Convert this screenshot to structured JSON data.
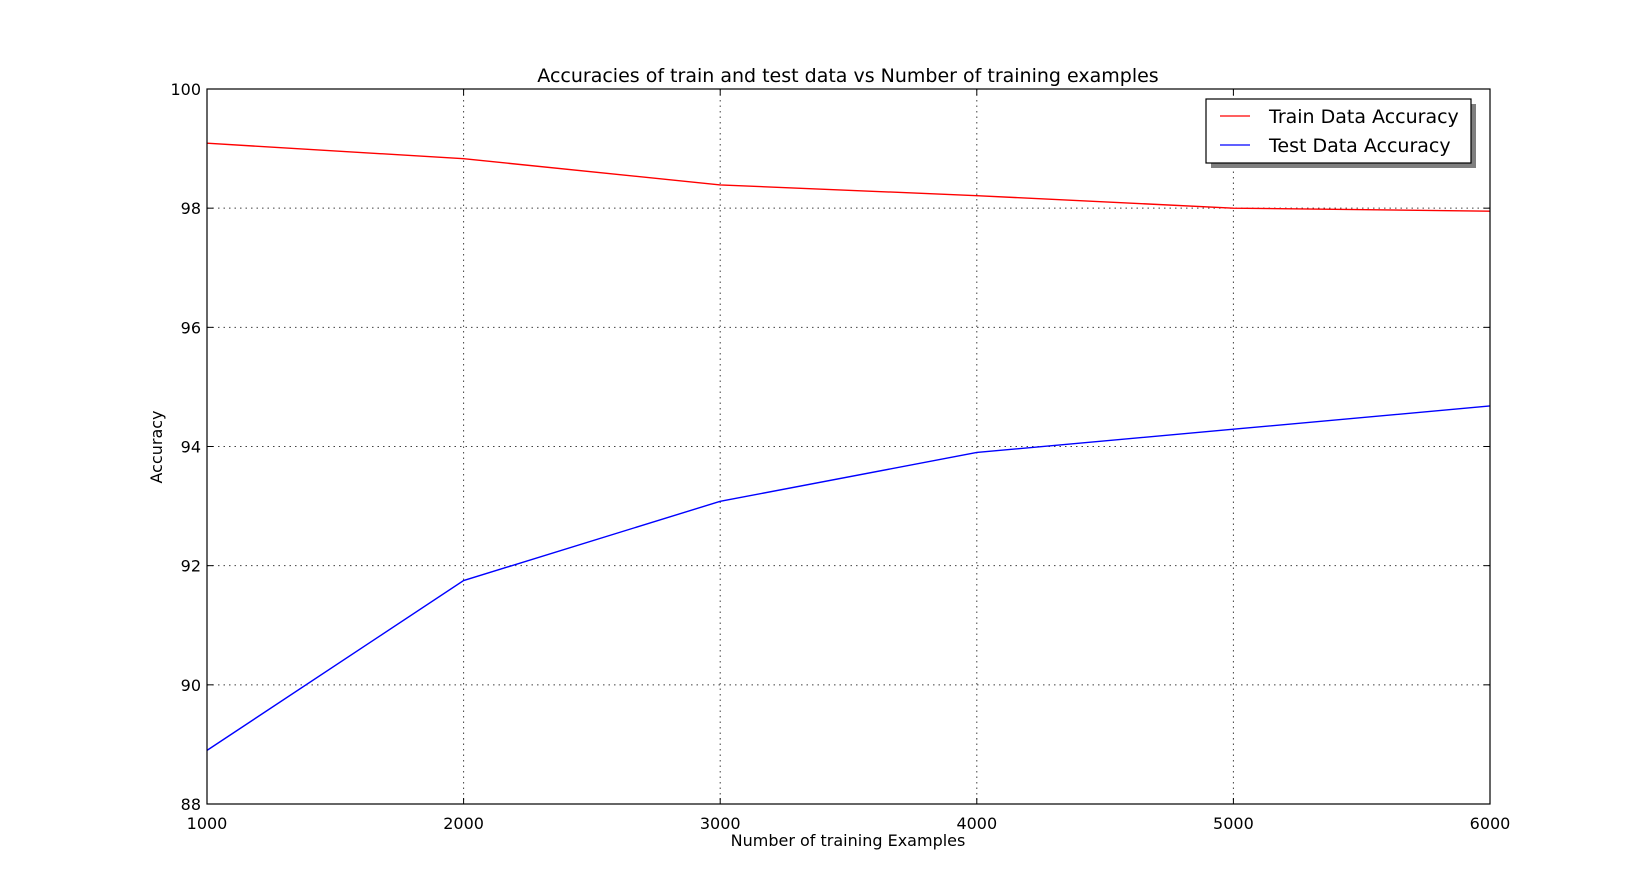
{
  "chart_data": {
    "type": "line",
    "title": "Accuracies of train and test data vs Number of training examples",
    "xlabel": "Number of training Examples",
    "ylabel": "Accuracy",
    "xlim": [
      1000,
      6000
    ],
    "ylim": [
      88,
      100
    ],
    "x": [
      1000,
      2000,
      3000,
      4000,
      5000,
      6000
    ],
    "x_ticks": [
      "1000",
      "2000",
      "3000",
      "4000",
      "5000",
      "6000"
    ],
    "y_ticks": [
      "88",
      "90",
      "92",
      "94",
      "96",
      "98",
      "100"
    ],
    "grid": true,
    "legend_position": "top-right",
    "series": [
      {
        "name": "Train Data Accuracy",
        "color": "#ff0000",
        "values": [
          99.09,
          98.83,
          98.39,
          98.21,
          98.0,
          97.95
        ]
      },
      {
        "name": "Test Data Accuracy",
        "color": "#0000ff",
        "values": [
          88.9,
          91.75,
          93.08,
          93.9,
          94.29,
          94.68
        ]
      }
    ]
  }
}
